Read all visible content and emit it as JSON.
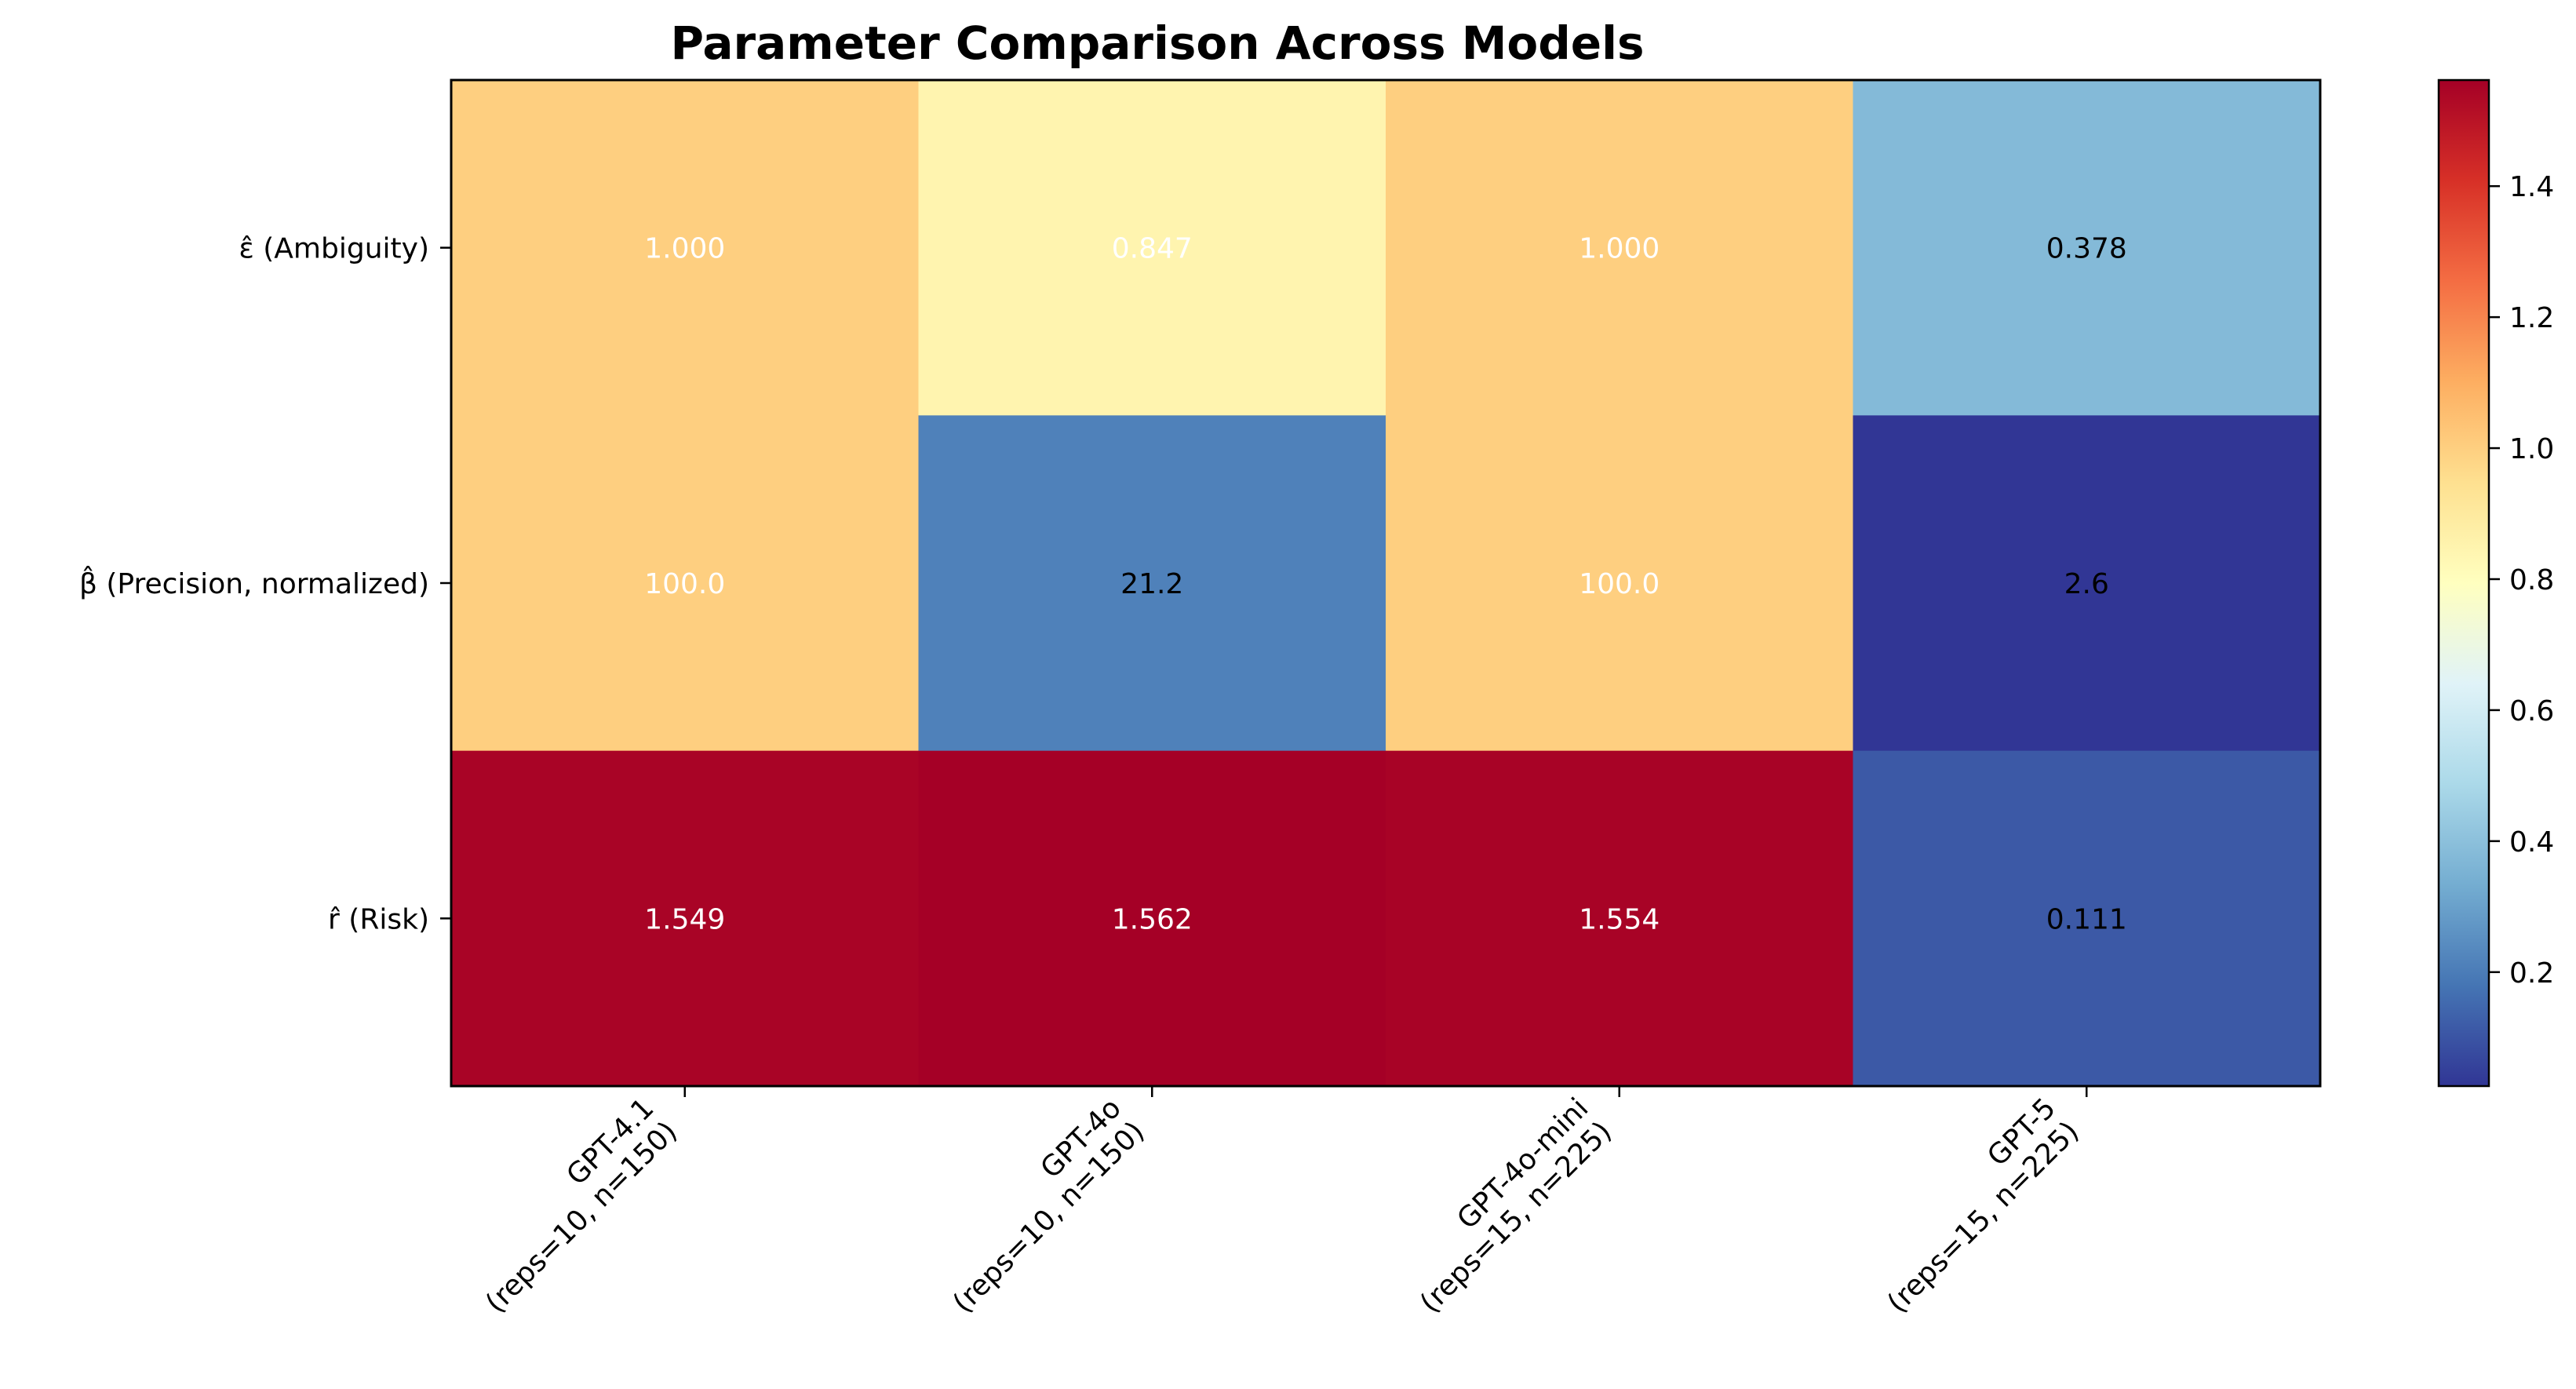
{
  "chart_data": {
    "type": "heatmap",
    "title": "Parameter Comparison Across Models",
    "rows": [
      "ε̂ (Ambiguity)",
      "β̂ (Precision, normalized)",
      "r̂ (Risk)"
    ],
    "columns": [
      [
        "GPT-4.1",
        "(reps=10, n=150)"
      ],
      [
        "GPT-4o",
        "(reps=10, n=150)"
      ],
      [
        "GPT-4o-mini",
        "(reps=15, n=225)"
      ],
      [
        "GPT-5",
        "(reps=15, n=225)"
      ]
    ],
    "color_values": [
      [
        1.0,
        0.847,
        1.0,
        0.378
      ],
      [
        1.0,
        0.212,
        1.0,
        0.026
      ],
      [
        1.549,
        1.562,
        1.554,
        0.111
      ]
    ],
    "labels": [
      [
        "1.000",
        "0.847",
        "1.000",
        "0.378"
      ],
      [
        "100.0",
        "21.2",
        "100.0",
        "2.6"
      ],
      [
        "1.549",
        "1.562",
        "1.554",
        "0.111"
      ]
    ],
    "label_colors": [
      [
        "#ffffff",
        "#ffffff",
        "#ffffff",
        "#000000"
      ],
      [
        "#ffffff",
        "#000000",
        "#ffffff",
        "#000000"
      ],
      [
        "#ffffff",
        "#ffffff",
        "#ffffff",
        "#000000"
      ]
    ],
    "colormap": "RdYlBu_r",
    "vmin": 0.026,
    "vmax": 1.562,
    "colorbar": {
      "ticks": [
        0.2,
        0.4,
        0.6,
        0.8,
        1.0,
        1.2,
        1.4
      ],
      "tick_labels": [
        "0.2",
        "0.4",
        "0.6",
        "0.8",
        "1.0",
        "1.2",
        "1.4"
      ]
    }
  }
}
